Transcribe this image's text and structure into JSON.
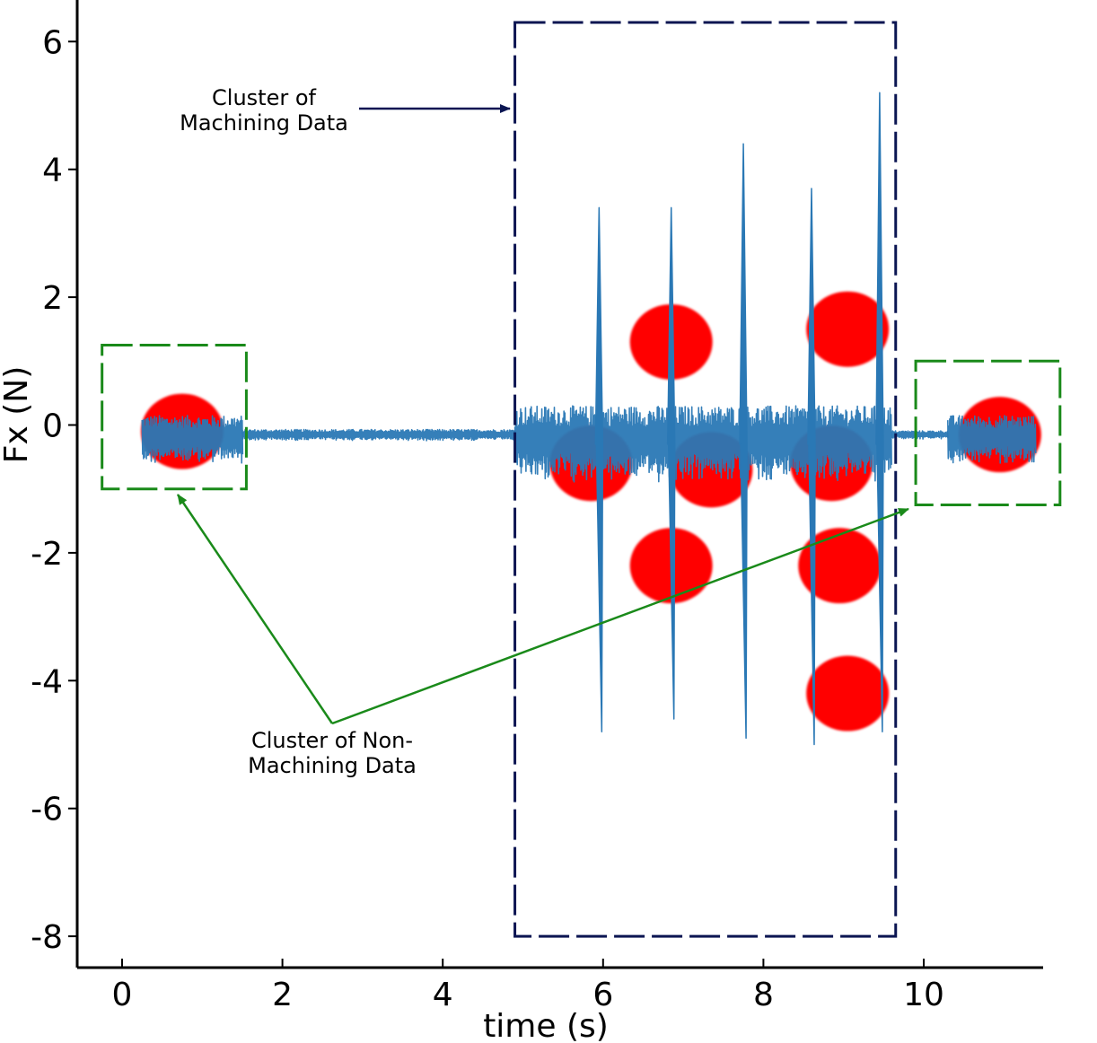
{
  "chart_data": {
    "type": "line",
    "title": "",
    "xlabel": "time (s)",
    "ylabel": "Fx (N)",
    "xlim": [
      -0.5,
      11.5
    ],
    "ylim": [
      -8.4,
      6.6
    ],
    "x_ticks": [
      0,
      2,
      4,
      6,
      8,
      10
    ],
    "y_ticks": [
      6,
      4,
      2,
      0,
      -2,
      -4,
      -6,
      -8
    ],
    "y_tick_labels": [
      "6",
      "4",
      "2",
      "0",
      "-2",
      "-4",
      "-6",
      "-8"
    ],
    "x_tick_labels": [
      "0",
      "2",
      "4",
      "6",
      "8",
      "10"
    ],
    "grid": false,
    "series": [
      {
        "name": "Fx",
        "color": "#2a78b5",
        "segments": [
          {
            "x_start": 0.25,
            "x_end": 1.5,
            "baseline": -0.2,
            "noise": 0.35
          },
          {
            "x_start": 1.5,
            "x_end": 4.9,
            "baseline": -0.15,
            "noise": 0.08
          },
          {
            "x_start": 4.9,
            "x_end": 9.6,
            "baseline": -0.25,
            "noise": 0.55
          },
          {
            "x_start": 9.6,
            "x_end": 10.3,
            "baseline": -0.15,
            "noise": 0.06
          },
          {
            "x_start": 10.3,
            "x_end": 11.4,
            "baseline": -0.2,
            "noise": 0.35
          }
        ],
        "spikes": [
          {
            "x": 5.95,
            "max": 3.4,
            "min": -4.8
          },
          {
            "x": 6.85,
            "max": 3.4,
            "min": -4.6
          },
          {
            "x": 7.75,
            "max": 4.4,
            "min": -4.9
          },
          {
            "x": 8.6,
            "max": 3.7,
            "min": -5.0
          },
          {
            "x": 9.45,
            "max": 5.2,
            "min": -4.8
          }
        ]
      }
    ],
    "cluster_centers": {
      "color": "#ff0000",
      "points": [
        {
          "x": 0.75,
          "y": -0.1
        },
        {
          "x": 5.85,
          "y": -0.6
        },
        {
          "x": 6.85,
          "y": 1.3
        },
        {
          "x": 7.35,
          "y": -0.7
        },
        {
          "x": 6.85,
          "y": -2.2
        },
        {
          "x": 8.85,
          "y": -0.6
        },
        {
          "x": 9.05,
          "y": 1.5
        },
        {
          "x": 8.95,
          "y": -2.2
        },
        {
          "x": 9.05,
          "y": -4.2
        },
        {
          "x": 10.95,
          "y": -0.15
        }
      ]
    },
    "regions": [
      {
        "name": "machining",
        "color": "#0b1552",
        "x_start": 4.9,
        "x_end": 9.65,
        "y_min": -8.0,
        "y_max": 6.3
      },
      {
        "name": "non-machining-left",
        "color": "#1a8a1a",
        "x_start": -0.25,
        "x_end": 1.55,
        "y_min": -1.0,
        "y_max": 1.25
      },
      {
        "name": "non-machining-right",
        "color": "#1a8a1a",
        "x_start": 9.9,
        "x_end": 11.7,
        "y_min": -1.25,
        "y_max": 1.0
      }
    ],
    "annotations": [
      {
        "lines": [
          "Cluster of",
          "Machining Data"
        ],
        "color": "#0b1552"
      },
      {
        "lines": [
          "Cluster of Non-",
          "Machining Data"
        ],
        "color": "#1a8a1a"
      }
    ]
  }
}
